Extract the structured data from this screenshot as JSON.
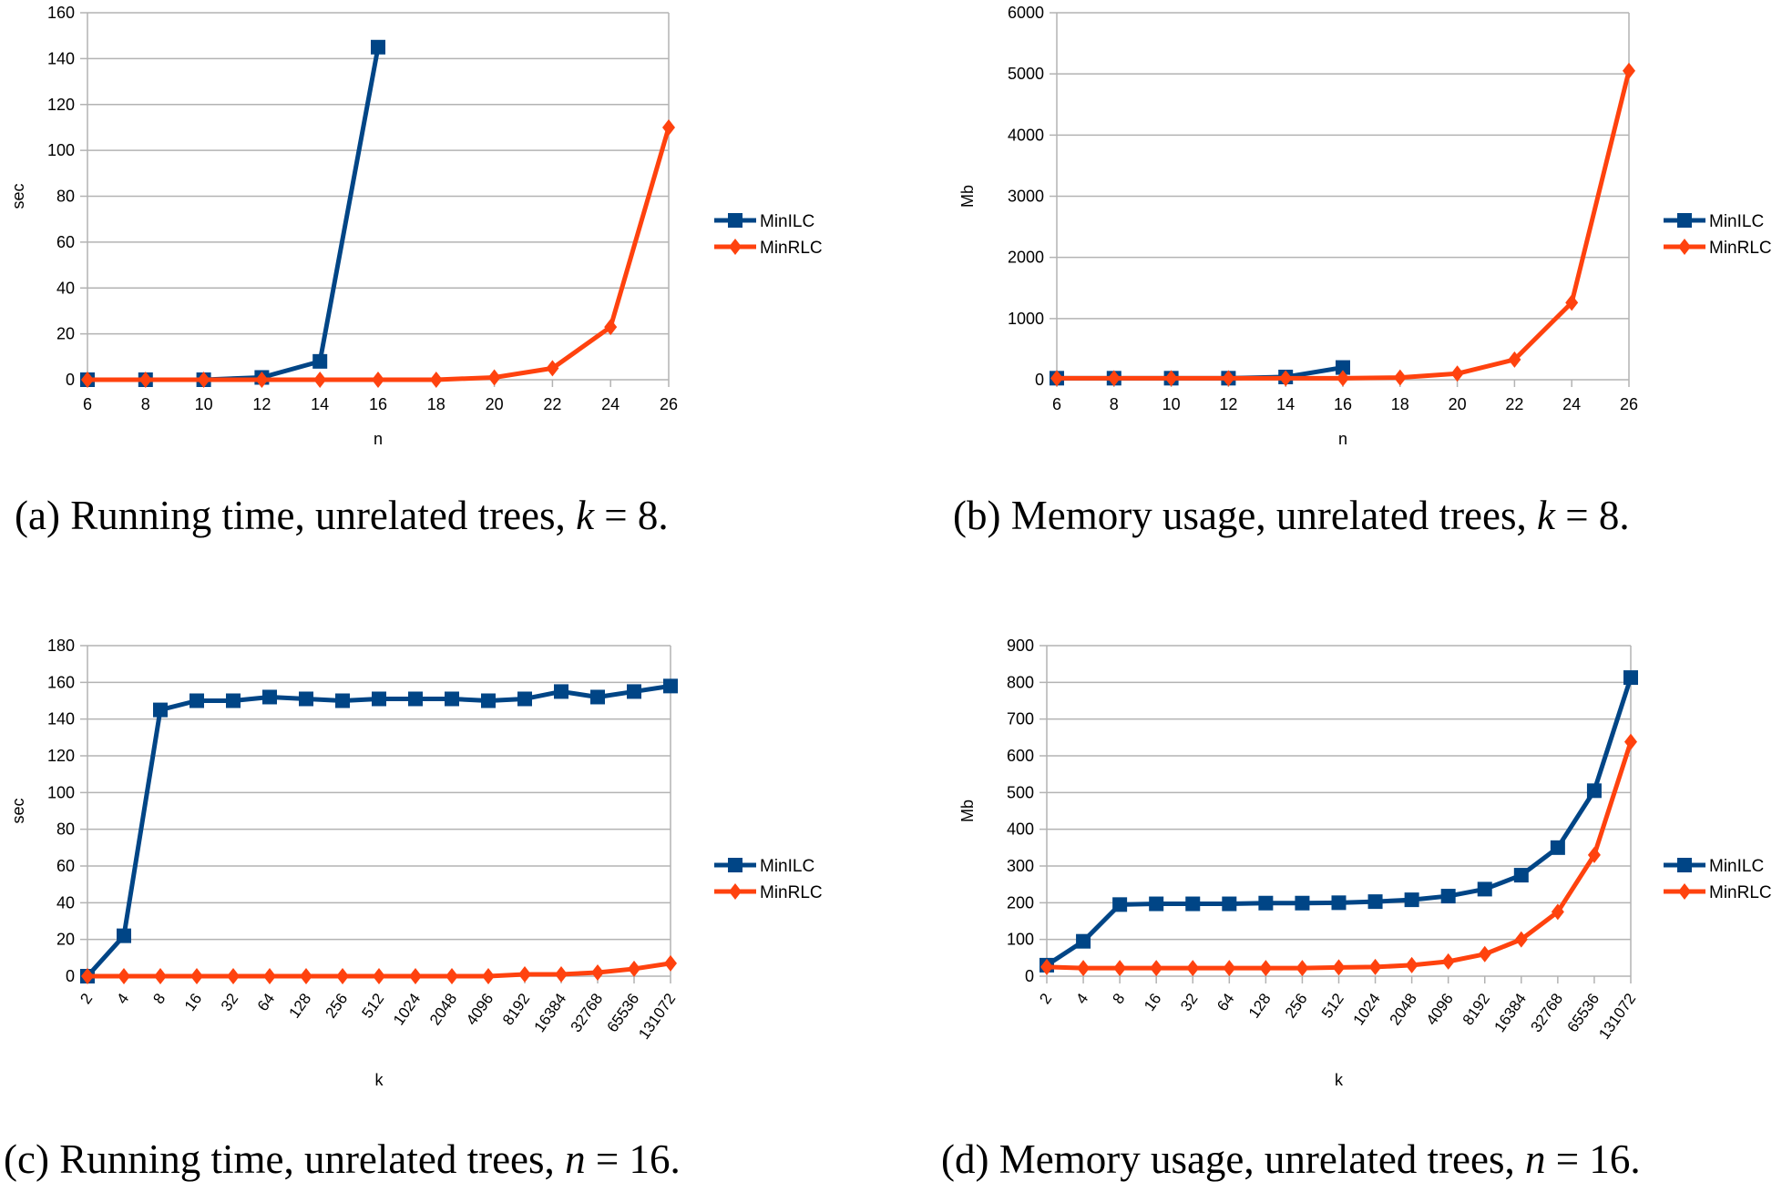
{
  "colors": {
    "MinILC": "#004586",
    "MinRLC": "#ff420e",
    "grid": "#b3b3b3"
  },
  "chart_data": [
    {
      "type": "line",
      "id": "a",
      "caption": {
        "prefix": "(a) Running time, unrelated trees, ",
        "var": "k",
        "suffix": " = 8."
      },
      "xlabel": "n",
      "ylabel": "sec",
      "categories": [
        "6",
        "8",
        "10",
        "12",
        "14",
        "16",
        "18",
        "20",
        "22",
        "24",
        "26"
      ],
      "ylim": [
        0,
        160
      ],
      "yticks": [
        0,
        20,
        40,
        60,
        80,
        100,
        120,
        140,
        160
      ],
      "grid": true,
      "legend": "right",
      "rotate_xticks": false,
      "series": [
        {
          "name": "MinILC",
          "marker": "square",
          "values": [
            0,
            0,
            0,
            1,
            8,
            145,
            null,
            null,
            null,
            null,
            null
          ]
        },
        {
          "name": "MinRLC",
          "marker": "diamond",
          "values": [
            0,
            0,
            0,
            0,
            0,
            0,
            0,
            1,
            5,
            23,
            110
          ]
        }
      ]
    },
    {
      "type": "line",
      "id": "b",
      "caption": {
        "prefix": "(b) Memory usage, unrelated trees, ",
        "var": "k",
        "suffix": " = 8."
      },
      "xlabel": "n",
      "ylabel": "Mb",
      "categories": [
        "6",
        "8",
        "10",
        "12",
        "14",
        "16",
        "18",
        "20",
        "22",
        "24",
        "26"
      ],
      "ylim": [
        0,
        6000
      ],
      "yticks": [
        0,
        1000,
        2000,
        3000,
        4000,
        5000,
        6000
      ],
      "grid": true,
      "legend": "right",
      "rotate_xticks": false,
      "series": [
        {
          "name": "MinILC",
          "marker": "square",
          "values": [
            25,
            25,
            25,
            25,
            45,
            200,
            null,
            null,
            null,
            null,
            null
          ]
        },
        {
          "name": "MinRLC",
          "marker": "diamond",
          "values": [
            25,
            25,
            25,
            25,
            25,
            25,
            35,
            100,
            330,
            1260,
            5050
          ]
        }
      ]
    },
    {
      "type": "line",
      "id": "c",
      "caption": {
        "prefix": "(c) Running time, unrelated trees, ",
        "var": "n",
        "suffix": " = 16."
      },
      "xlabel": "k",
      "ylabel": "sec",
      "categories": [
        "2",
        "4",
        "8",
        "16",
        "32",
        "64",
        "128",
        "256",
        "512",
        "1024",
        "2048",
        "4096",
        "8192",
        "16384",
        "32768",
        "65536",
        "131072"
      ],
      "ylim": [
        0,
        180
      ],
      "yticks": [
        0,
        20,
        40,
        60,
        80,
        100,
        120,
        140,
        160,
        180
      ],
      "grid": true,
      "legend": "right",
      "rotate_xticks": true,
      "series": [
        {
          "name": "MinILC",
          "marker": "square",
          "values": [
            0,
            22,
            145,
            150,
            150,
            152,
            151,
            150,
            151,
            151,
            151,
            150,
            151,
            155,
            152,
            155,
            158
          ]
        },
        {
          "name": "MinRLC",
          "marker": "diamond",
          "values": [
            0,
            0,
            0,
            0,
            0,
            0,
            0,
            0,
            0,
            0,
            0,
            0,
            1,
            1,
            2,
            4,
            7
          ]
        }
      ]
    },
    {
      "type": "line",
      "id": "d",
      "caption": {
        "prefix": "(d) Memory usage, unrelated trees, ",
        "var": "n",
        "suffix": " = 16."
      },
      "xlabel": "k",
      "ylabel": "Mb",
      "categories": [
        "2",
        "4",
        "8",
        "16",
        "32",
        "64",
        "128",
        "256",
        "512",
        "1024",
        "2048",
        "4096",
        "8192",
        "16384",
        "32768",
        "65536",
        "131072"
      ],
      "ylim": [
        0,
        900
      ],
      "yticks": [
        0,
        100,
        200,
        300,
        400,
        500,
        600,
        700,
        800,
        900
      ],
      "grid": true,
      "legend": "right",
      "rotate_xticks": true,
      "series": [
        {
          "name": "MinILC",
          "marker": "square",
          "values": [
            30,
            95,
            195,
            197,
            197,
            197,
            199,
            199,
            200,
            203,
            208,
            218,
            237,
            275,
            350,
            505,
            813
          ]
        },
        {
          "name": "MinRLC",
          "marker": "diamond",
          "values": [
            25,
            22,
            22,
            22,
            22,
            22,
            22,
            22,
            24,
            25,
            30,
            40,
            60,
            100,
            175,
            330,
            638
          ]
        }
      ]
    }
  ]
}
